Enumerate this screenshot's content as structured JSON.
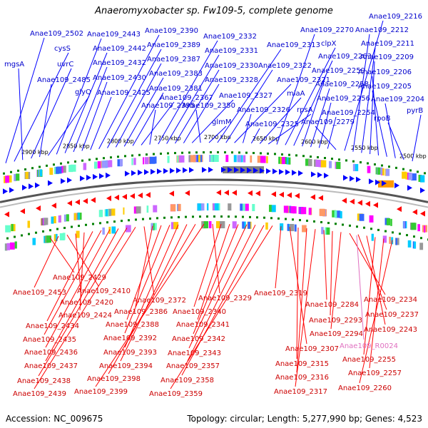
{
  "title": "Anaeromyxobacter sp. Fw109-5, complete genome",
  "footer": {
    "accession": "Accession: NC_009675",
    "summary": "Topology: circular; Length: 5,277,990 bp; Genes: 4,523"
  },
  "colors": {
    "top_strand": "#0000ff",
    "bottom_strand": "#ff0000",
    "rna": "#e070c0",
    "backbone": "#808080",
    "gc_marks": "#008000"
  },
  "ticks": [
    "2900 kbp",
    "2850 kbp",
    "2800 kbp",
    "2750 kbp",
    "2700 kbp",
    "2650 kbp",
    "2600 kbp",
    "2550 kbp",
    "2500 kbp"
  ],
  "top_labels": [
    "Anae109_2502",
    "cysS",
    "mgsA",
    "uvrC",
    "Anae109_2485",
    "glyQ",
    "Anae109_2443",
    "Anae109_2442",
    "Anae109_2432",
    "Anae109_2430",
    "Anae109_2425",
    "Anae109_2390",
    "Anae109_2389",
    "Anae109_2387",
    "Anae109_2383",
    "Anae109_2381",
    "Anae109_2367",
    "Anae109_2395",
    "Anae109_2332",
    "Anae109_2331",
    "Anae109_2330",
    "Anae109_2328",
    "Anae109_2327",
    "Anae109_2350",
    "glmM",
    "Anae109_2313",
    "Anae109_2322",
    "Anae109_2321",
    "Anae109_2326",
    "Anae109_2325",
    "miaA",
    "rpsA",
    "Anae109_2270",
    "clpX",
    "Anae109_2263",
    "Anae109_2259",
    "Anae109_2258",
    "Anae109_2256",
    "Anae109_2254",
    "Anae109_2279",
    "Anae109_2216",
    "Anae109_2212",
    "Anae109_2211",
    "Anae109_2209",
    "Anae109_2206",
    "Anae109_2205",
    "Anae109_2204",
    "rpoB",
    "pyrB"
  ],
  "bottom_labels": [
    "Anae109_2429",
    "Anae109_2453",
    "Anae109_2410",
    "Anae109_2420",
    "Anae109_2424",
    "Anae109_2434",
    "Anae109_2435",
    "Anae109_2436",
    "Anae109_2437",
    "Anae109_2438",
    "Anae109_2439",
    "Anae109_2372",
    "Anae109_2386",
    "Anae109_2388",
    "Anae109_2392",
    "Anae109_2393",
    "Anae109_2394",
    "Anae109_2398",
    "Anae109_2399",
    "Anae109_2329",
    "Anae109_2340",
    "Anae109_2341",
    "Anae109_2342",
    "Anae109_2343",
    "Anae109_2357",
    "Anae109_2358",
    "Anae109_2359",
    "Anae109_2319",
    "Anae109_2307",
    "Anae109_2315",
    "Anae109_2316",
    "Anae109_2317",
    "Anae109_2284",
    "Anae109_2293",
    "Anae109_2294",
    "Anae109_2234",
    "Anae109_2237",
    "Anae109_2243",
    "Anae109_2255",
    "Anae109_2257",
    "Anae109_2260"
  ],
  "rna_labels": [
    "Anae109_R0024"
  ]
}
